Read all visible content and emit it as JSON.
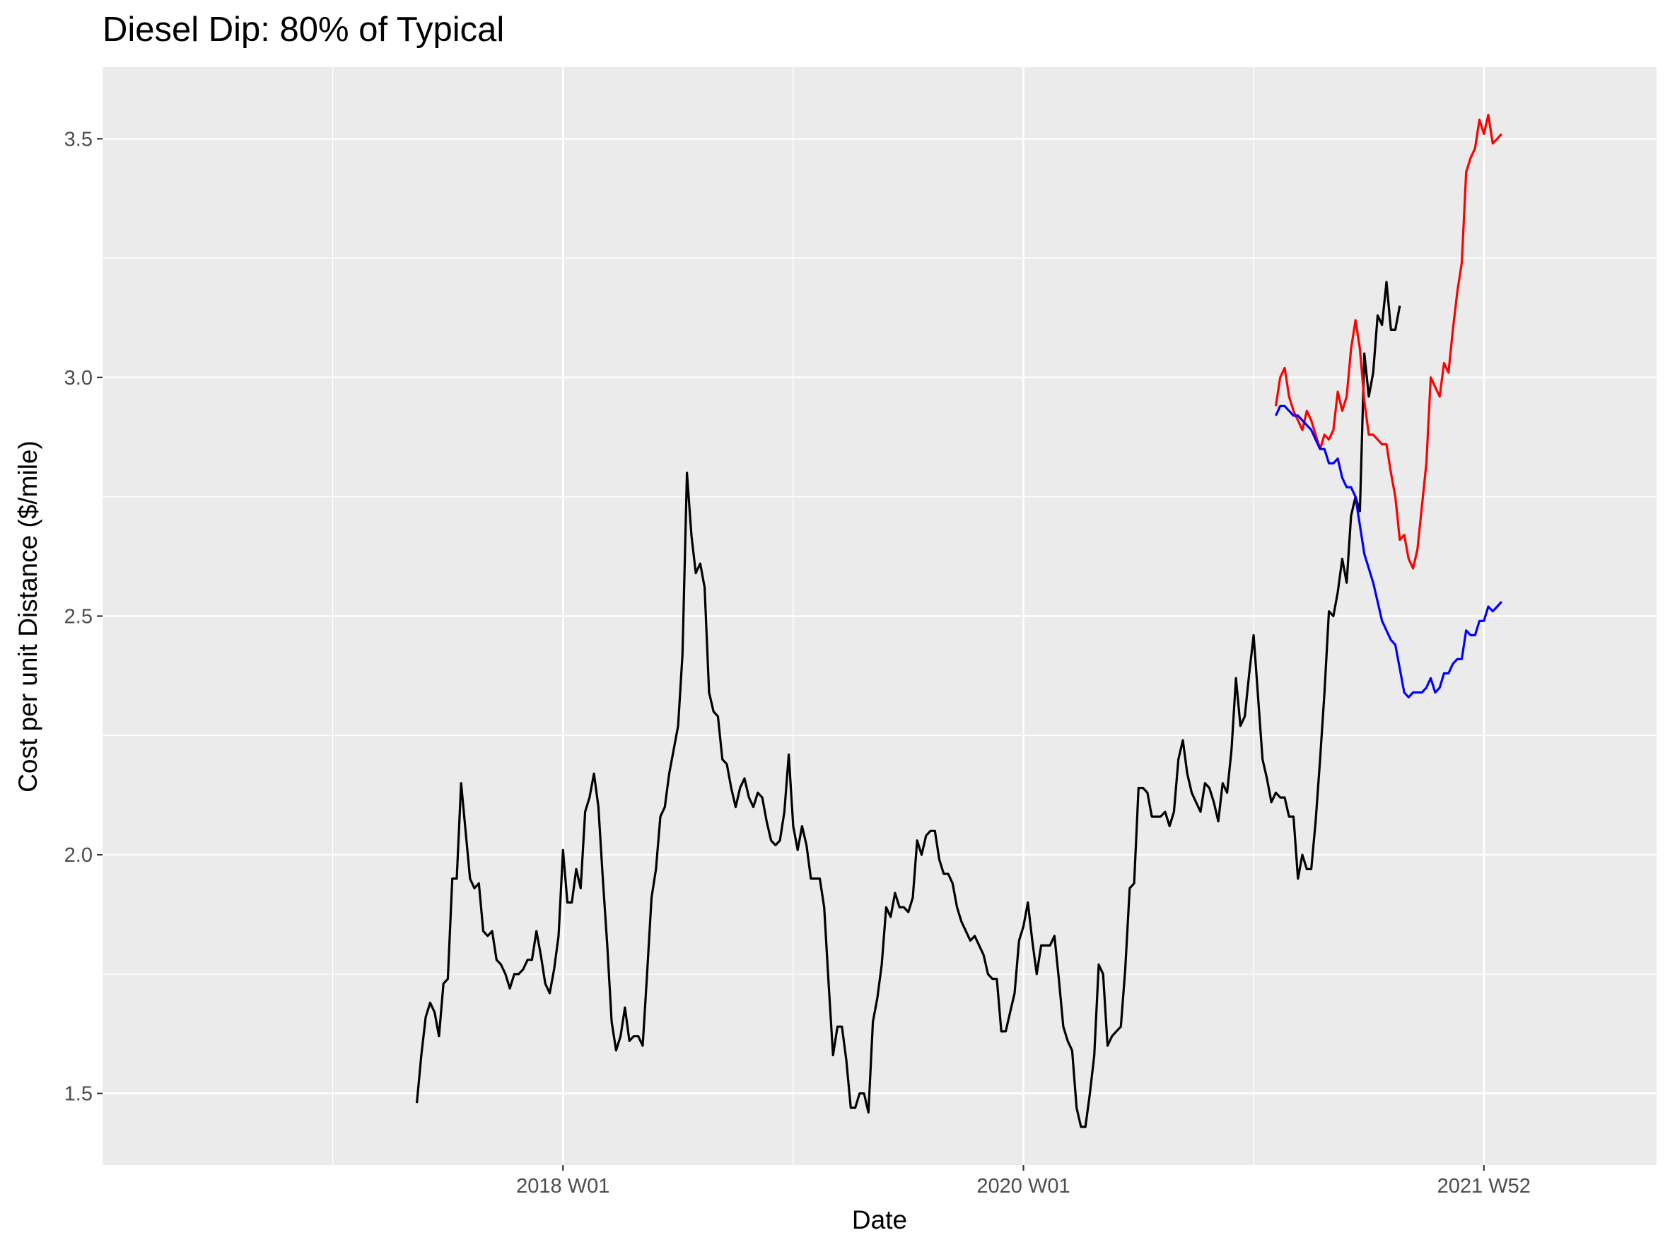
{
  "chart_data": {
    "type": "line",
    "title": "Diesel Dip: 80% of Typical",
    "xlabel": "Date",
    "ylabel": "Cost per unit Distance ($/mile)",
    "grid": true,
    "legend": "none",
    "colors": {
      "panel": "#ebebeb",
      "grid": "#ffffff",
      "history": "#000000",
      "upper": "#ff0000",
      "lower": "#0000ff"
    },
    "x_ticks": [
      {
        "week": "2018-W01",
        "label": "2018 W01"
      },
      {
        "week": "2020-W01",
        "label": "2020 W01"
      },
      {
        "week": "2021-W52",
        "label": "2021 W52"
      }
    ],
    "y_ticks": [
      {
        "value": 1.5,
        "label": "1.5"
      },
      {
        "value": 2.0,
        "label": "2.0"
      },
      {
        "value": 2.5,
        "label": "2.5"
      },
      {
        "value": 3.0,
        "label": "3.0"
      },
      {
        "value": 3.5,
        "label": "3.5"
      }
    ],
    "ylim": [
      1.35,
      3.65
    ],
    "xlim": [
      "2016-W01",
      "2022-W39"
    ],
    "series": [
      {
        "key": "history",
        "start_week": "2017-W20",
        "step_weeks": 1,
        "values": [
          1.48,
          1.58,
          1.66,
          1.69,
          1.67,
          1.62,
          1.73,
          1.74,
          1.95,
          1.95,
          2.15,
          2.05,
          1.95,
          1.93,
          1.94,
          1.84,
          1.83,
          1.84,
          1.78,
          1.77,
          1.75,
          1.72,
          1.75,
          1.75,
          1.76,
          1.78,
          1.78,
          1.84,
          1.79,
          1.73,
          1.71,
          1.76,
          1.83,
          2.01,
          1.9,
          1.9,
          1.97,
          1.93,
          2.09,
          2.12,
          2.17,
          2.1,
          1.95,
          1.81,
          1.65,
          1.59,
          1.62,
          1.68,
          1.61,
          1.62,
          1.62,
          1.6,
          1.75,
          1.91,
          1.97,
          2.08,
          2.1,
          2.17,
          2.22,
          2.27,
          2.42,
          2.8,
          2.67,
          2.59,
          2.61,
          2.56,
          2.34,
          2.3,
          2.29,
          2.2,
          2.19,
          2.14,
          2.1,
          2.14,
          2.16,
          2.12,
          2.1,
          2.13,
          2.12,
          2.07,
          2.03,
          2.02,
          2.03,
          2.09,
          2.21,
          2.06,
          2.01,
          2.06,
          2.02,
          1.95,
          1.95,
          1.95,
          1.89,
          1.73,
          1.58,
          1.64,
          1.64,
          1.57,
          1.47,
          1.47,
          1.5,
          1.5,
          1.46,
          1.65,
          1.7,
          1.77,
          1.89,
          1.87,
          1.92,
          1.89,
          1.89,
          1.88,
          1.91,
          2.03,
          2.0,
          2.04,
          2.05,
          2.05,
          1.99,
          1.96,
          1.96,
          1.94,
          1.89,
          1.86,
          1.84,
          1.82,
          1.83,
          1.81,
          1.79,
          1.75,
          1.74,
          1.74,
          1.63,
          1.63,
          1.67,
          1.71,
          1.82,
          1.85,
          1.9,
          1.82,
          1.75,
          1.81,
          1.81,
          1.81,
          1.83,
          1.74,
          1.64,
          1.61,
          1.59,
          1.47,
          1.43,
          1.43,
          1.5,
          1.58,
          1.77,
          1.75,
          1.6,
          1.62,
          1.63,
          1.64,
          1.76,
          1.93,
          1.94,
          2.14,
          2.14,
          2.13,
          2.08,
          2.08,
          2.08,
          2.09,
          2.06,
          2.09,
          2.2,
          2.24,
          2.17,
          2.13,
          2.11,
          2.09,
          2.15,
          2.14,
          2.11,
          2.07,
          2.15,
          2.13,
          2.22,
          2.37,
          2.27,
          2.29,
          2.38,
          2.46,
          2.33,
          2.2,
          2.16,
          2.11,
          2.13,
          2.12,
          2.12,
          2.08,
          2.08,
          1.95,
          2.0,
          1.97,
          1.97,
          2.07,
          2.2,
          2.34,
          2.51,
          2.5,
          2.55,
          2.62,
          2.57,
          2.71,
          2.75,
          2.72,
          3.05,
          2.96,
          3.01,
          3.13,
          3.11,
          3.2,
          3.1,
          3.1,
          3.15
        ]
      },
      {
        "key": "upper",
        "start_week": "2021-W05",
        "step_weeks": 1,
        "values": [
          2.94,
          3.0,
          3.02,
          2.96,
          2.93,
          2.91,
          2.89,
          2.93,
          2.91,
          2.88,
          2.85,
          2.88,
          2.87,
          2.89,
          2.97,
          2.93,
          2.96,
          3.06,
          3.12,
          3.06,
          2.95,
          2.88,
          2.88,
          2.87,
          2.86,
          2.86,
          2.8,
          2.75,
          2.66,
          2.67,
          2.62,
          2.6,
          2.64,
          2.73,
          2.82,
          3.0,
          2.98,
          2.96,
          3.03,
          3.01,
          3.1,
          3.18,
          3.24,
          3.43,
          3.46,
          3.48,
          3.54,
          3.51,
          3.55,
          3.49,
          3.5,
          3.51
        ]
      },
      {
        "key": "lower",
        "start_week": "2021-W05",
        "step_weeks": 1,
        "values": [
          2.92,
          2.94,
          2.94,
          2.93,
          2.92,
          2.92,
          2.91,
          2.9,
          2.89,
          2.87,
          2.85,
          2.85,
          2.82,
          2.82,
          2.83,
          2.79,
          2.77,
          2.77,
          2.75,
          2.69,
          2.63,
          2.6,
          2.57,
          2.53,
          2.49,
          2.47,
          2.45,
          2.44,
          2.39,
          2.34,
          2.33,
          2.34,
          2.34,
          2.34,
          2.35,
          2.37,
          2.34,
          2.35,
          2.38,
          2.38,
          2.4,
          2.41,
          2.41,
          2.47,
          2.46,
          2.46,
          2.49,
          2.49,
          2.52,
          2.51,
          2.52,
          2.53
        ]
      }
    ]
  }
}
